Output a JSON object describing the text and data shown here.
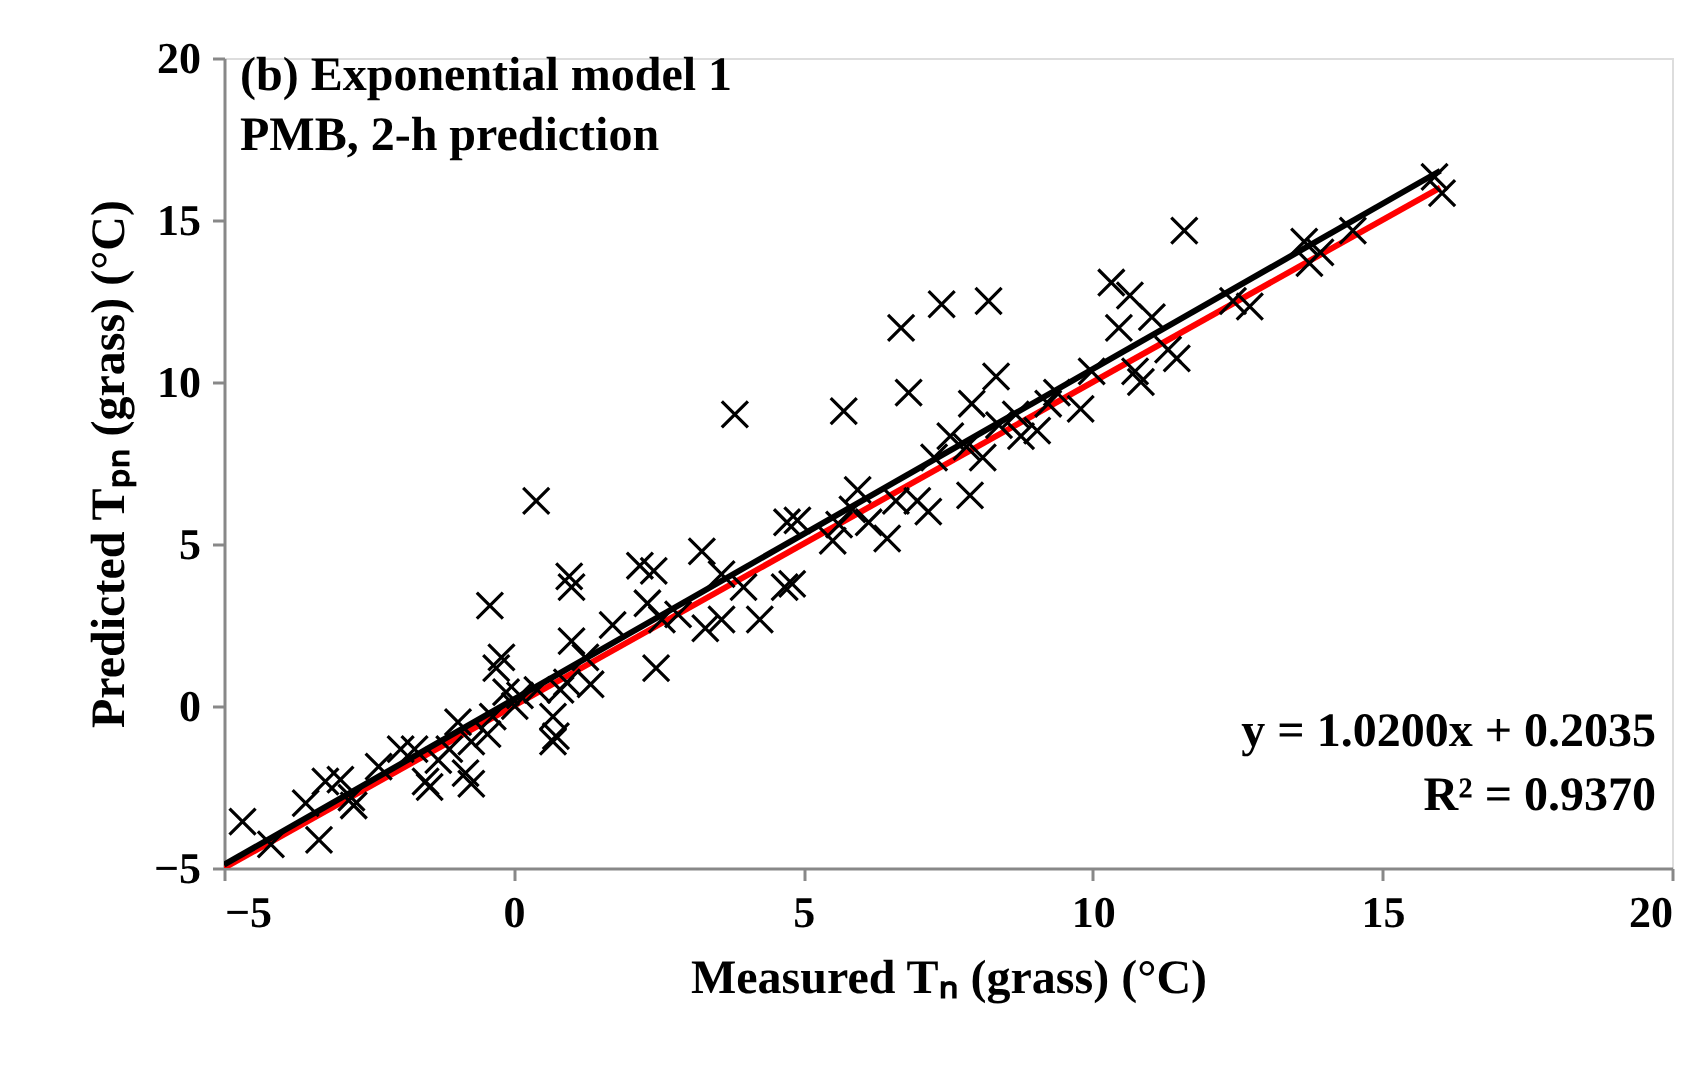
{
  "chart_data": {
    "type": "scatter",
    "title": "(b) Exponential model 1",
    "subtitle": "PMB, 2-h prediction",
    "xlabel": "Measured Tₙ (grass) (°C)",
    "ylabel": "Predicted Tₚₙ (grass) (°C)",
    "annotations": [
      "y = 1.0200x + 0.2035",
      "R² = 0.9370"
    ],
    "xlim": [
      -5,
      20
    ],
    "ylim": [
      -5,
      20
    ],
    "xticks": [
      -5,
      0,
      5,
      10,
      15,
      20
    ],
    "yticks": [
      -5,
      0,
      5,
      10,
      15,
      20
    ],
    "grid": false,
    "series": [
      {
        "type": "line",
        "color": "#ff0000",
        "line_style": "solid",
        "x": [
          -5,
          16
        ],
        "values": [
          -5,
          16
        ]
      },
      {
        "type": "line",
        "color": "#000000",
        "line_style": "solid",
        "x": [
          -5,
          16
        ],
        "values": [
          -4.9,
          16.52
        ]
      },
      {
        "marker": "cross",
        "color": "#000000",
        "x": [
          -4.68,
          -4.19,
          -3.36,
          -3.59,
          -3.25,
          -2.99,
          -2.8,
          -2.76,
          -2.33,
          -1.95,
          -1.71,
          -1.52,
          -1.45,
          -1.3,
          -1.11,
          -0.96,
          -0.83,
          -0.73,
          -0.73,
          -0.45,
          -0.41,
          -0.36,
          -0.3,
          -0.21,
          -0.13,
          0.02,
          0.11,
          0.41,
          0.39,
          0.68,
          0.73,
          0.68,
          0.81,
          0.92,
          0.96,
          1.0,
          1.0,
          1.24,
          1.33,
          1.71,
          2.18,
          2.42,
          2.46,
          2.31,
          2.56,
          2.84,
          3.25,
          3.31,
          3.59,
          3.59,
          3.82,
          3.97,
          4.25,
          4.68,
          4.81,
          4.72,
          4.9,
          5.51,
          5.62,
          5.7,
          5.85,
          5.94,
          6.13,
          6.45,
          6.6,
          6.69,
          6.82,
          6.97,
          7.16,
          7.39,
          7.26,
          7.54,
          7.82,
          7.88,
          7.91,
          8.2,
          8.1,
          8.33,
          8.38,
          8.67,
          8.76,
          9.04,
          9.23,
          9.38,
          9.79,
          9.98,
          10.32,
          10.45,
          10.64,
          10.73,
          10.83,
          11.02,
          11.3,
          11.45,
          11.58,
          12.42,
          12.71,
          13.65,
          13.93,
          13.74,
          14.49,
          15.9,
          16.03
        ],
        "values": [
          -3.57,
          -4.27,
          -4.13,
          -3.0,
          -2.33,
          -2.27,
          -2.83,
          -3.07,
          -1.87,
          -1.33,
          -1.33,
          -2.33,
          -2.5,
          -1.67,
          -1.33,
          -0.5,
          -2.07,
          -2.4,
          -1.1,
          -0.87,
          3.1,
          -0.33,
          1.17,
          1.5,
          0.43,
          0,
          0.33,
          0.5,
          6.33,
          -0.33,
          -0.93,
          -1.1,
          0.5,
          0.73,
          4.0,
          3.67,
          2.0,
          1.5,
          0.67,
          2.5,
          4.33,
          4.17,
          1.17,
          3.17,
          2.67,
          2.83,
          4.77,
          2.4,
          2.67,
          4.07,
          9.0,
          3.67,
          2.67,
          3.67,
          3.77,
          5.67,
          5.73,
          5.1,
          5.6,
          9.1,
          6.07,
          6.67,
          5.67,
          5.17,
          6.33,
          11.67,
          9.67,
          6.33,
          6.0,
          12.4,
          7.67,
          8.33,
          8.0,
          6.5,
          9.33,
          12.5,
          7.67,
          10.17,
          8.67,
          9.0,
          8.33,
          8.5,
          9.33,
          9.67,
          9.17,
          10.33,
          13.07,
          11.67,
          12.67,
          10.33,
          10.0,
          12.0,
          11.0,
          10.73,
          14.67,
          12.5,
          12.33,
          14.33,
          14.0,
          13.67,
          14.67,
          16.33,
          15.83
        ]
      }
    ]
  }
}
